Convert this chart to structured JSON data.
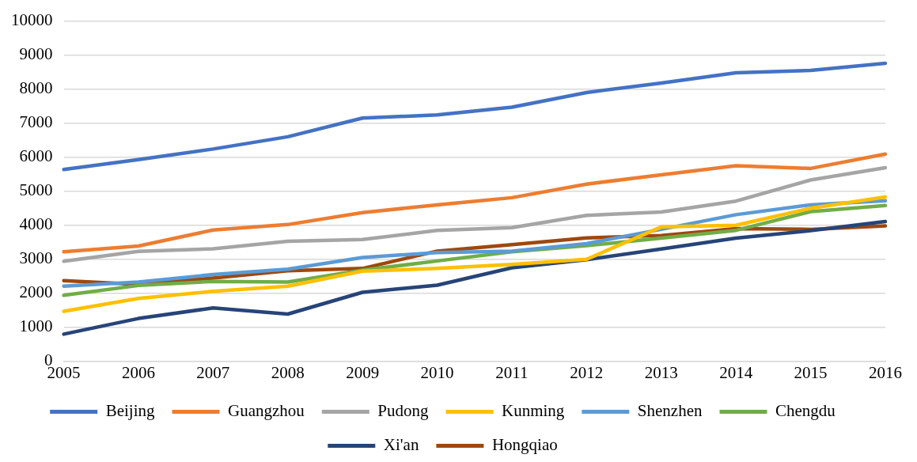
{
  "chart_data": {
    "type": "line",
    "categories": [
      "2005",
      "2006",
      "2007",
      "2008",
      "2009",
      "2010",
      "2011",
      "2012",
      "2013",
      "2014",
      "2015",
      "2016"
    ],
    "ylim": [
      0,
      10000
    ],
    "yticks": [
      0,
      1000,
      2000,
      3000,
      4000,
      5000,
      6000,
      7000,
      8000,
      9000,
      10000
    ],
    "grid": "y",
    "legend": "bottom",
    "marker": "none",
    "line_style": "solid",
    "series": [
      {
        "name": "Beijing",
        "color": "#4472c4",
        "values": [
          5640,
          5930,
          6240,
          6600,
          7150,
          7240,
          7470,
          7900,
          8180,
          8480,
          8550,
          8760
        ]
      },
      {
        "name": "Guangzhou",
        "color": "#ed7d31",
        "values": [
          3220,
          3390,
          3860,
          4020,
          4370,
          4600,
          4810,
          5210,
          5480,
          5750,
          5670,
          6090
        ]
      },
      {
        "name": "Pudong",
        "color": "#a5a5a5",
        "values": [
          2940,
          3230,
          3310,
          3530,
          3580,
          3850,
          3930,
          4290,
          4390,
          4710,
          5330,
          5690
        ]
      },
      {
        "name": "Kunming",
        "color": "#ffc000",
        "values": [
          1470,
          1850,
          2060,
          2210,
          2650,
          2730,
          2850,
          3000,
          3950,
          4000,
          4500,
          4830
        ]
      },
      {
        "name": "Shenzhen",
        "color": "#5b9bd5",
        "values": [
          2210,
          2330,
          2550,
          2710,
          3050,
          3200,
          3240,
          3460,
          3880,
          4310,
          4600,
          4720
        ]
      },
      {
        "name": "Chengdu",
        "color": "#70ad47",
        "values": [
          1940,
          2230,
          2350,
          2330,
          2680,
          2950,
          3220,
          3400,
          3620,
          3850,
          4400,
          4580
        ]
      },
      {
        "name": "Xi'an",
        "color": "#264478",
        "values": [
          800,
          1260,
          1570,
          1390,
          2030,
          2240,
          2750,
          2990,
          3300,
          3620,
          3840,
          4110
        ]
      },
      {
        "name": "Hongqiao",
        "color": "#9e480e",
        "values": [
          2370,
          2260,
          2450,
          2660,
          2730,
          3240,
          3430,
          3630,
          3700,
          3900,
          3880,
          3980
        ]
      }
    ]
  }
}
